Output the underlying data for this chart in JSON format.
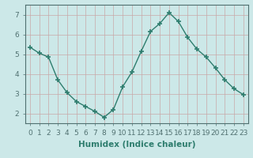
{
  "x": [
    0,
    1,
    2,
    3,
    4,
    5,
    6,
    7,
    8,
    9,
    10,
    11,
    12,
    13,
    14,
    15,
    16,
    17,
    18,
    19,
    20,
    21,
    22,
    23
  ],
  "y": [
    5.35,
    5.05,
    4.85,
    3.7,
    3.05,
    2.6,
    2.35,
    2.1,
    1.8,
    2.2,
    3.35,
    4.1,
    5.15,
    6.15,
    6.55,
    7.1,
    6.65,
    5.85,
    5.25,
    4.85,
    4.3,
    3.7,
    3.25,
    2.95
  ],
  "line_color": "#2e7d6e",
  "marker": "+",
  "marker_size": 4,
  "line_width": 1.0,
  "xlabel": "Humidex (Indice chaleur)",
  "xlabel_fontsize": 7.5,
  "xlim": [
    -0.5,
    23.5
  ],
  "ylim": [
    1.5,
    7.5
  ],
  "yticks": [
    2,
    3,
    4,
    5,
    6,
    7
  ],
  "xticks": [
    0,
    1,
    2,
    3,
    4,
    5,
    6,
    7,
    8,
    9,
    10,
    11,
    12,
    13,
    14,
    15,
    16,
    17,
    18,
    19,
    20,
    21,
    22,
    23
  ],
  "grid_color": "#c8a8a8",
  "bg_color": "#cce8e8",
  "tick_fontsize": 6.5,
  "spine_color": "#507070",
  "marker_color": "#2e7d6e"
}
